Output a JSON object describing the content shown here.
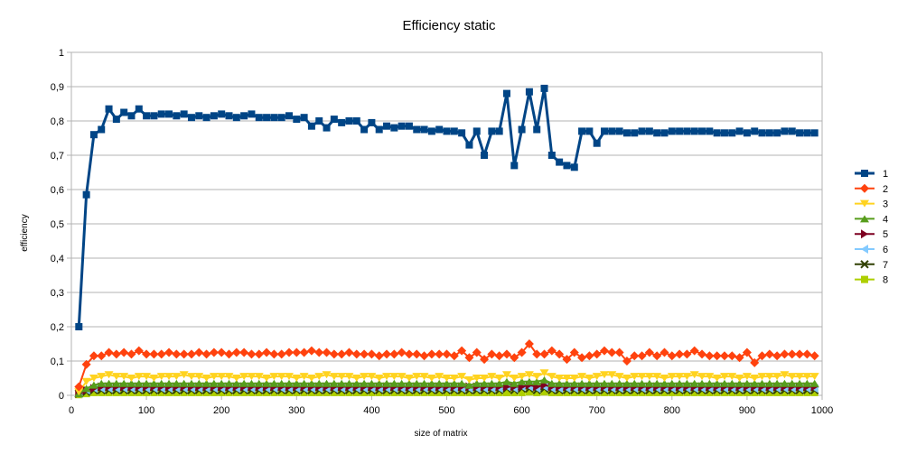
{
  "chart_data": {
    "type": "line",
    "title": "Efficiency static",
    "xlabel": "size of matrix",
    "ylabel": "efficiency",
    "xlim": [
      0,
      1000
    ],
    "ylim": [
      0,
      1
    ],
    "x_ticks": [
      0,
      100,
      200,
      300,
      400,
      500,
      600,
      700,
      800,
      900,
      1000
    ],
    "y_ticks": [
      0,
      0.1,
      0.2,
      0.3,
      0.4,
      0.5,
      0.6,
      0.7,
      0.8,
      0.9,
      1
    ],
    "y_tick_labels": [
      "0",
      "0,1",
      "0,2",
      "0,3",
      "0,4",
      "0,5",
      "0,6",
      "0,7",
      "0,8",
      "0,9",
      "1"
    ],
    "grid": "horizontal",
    "legend_position": "right",
    "x": [
      10,
      20,
      30,
      40,
      50,
      60,
      70,
      80,
      90,
      100,
      110,
      120,
      130,
      140,
      150,
      160,
      170,
      180,
      190,
      200,
      210,
      220,
      230,
      240,
      250,
      260,
      270,
      280,
      290,
      300,
      310,
      320,
      330,
      340,
      350,
      360,
      370,
      380,
      390,
      400,
      410,
      420,
      430,
      440,
      450,
      460,
      470,
      480,
      490,
      500,
      510,
      520,
      530,
      540,
      550,
      560,
      570,
      580,
      590,
      600,
      610,
      620,
      630,
      640,
      650,
      660,
      670,
      680,
      690,
      700,
      710,
      720,
      730,
      740,
      750,
      760,
      770,
      780,
      790,
      800,
      810,
      820,
      830,
      840,
      850,
      860,
      870,
      880,
      890,
      900,
      910,
      920,
      930,
      940,
      950,
      960,
      970,
      980,
      990
    ],
    "series": [
      {
        "name": "1",
        "color": "#004586",
        "marker": "square",
        "values": [
          0.2,
          0.585,
          0.76,
          0.775,
          0.835,
          0.805,
          0.825,
          0.815,
          0.835,
          0.815,
          0.815,
          0.82,
          0.82,
          0.815,
          0.82,
          0.81,
          0.815,
          0.81,
          0.815,
          0.82,
          0.815,
          0.81,
          0.815,
          0.82,
          0.81,
          0.81,
          0.81,
          0.81,
          0.815,
          0.805,
          0.81,
          0.785,
          0.8,
          0.78,
          0.805,
          0.795,
          0.8,
          0.8,
          0.775,
          0.795,
          0.775,
          0.785,
          0.78,
          0.785,
          0.785,
          0.775,
          0.775,
          0.77,
          0.775,
          0.77,
          0.77,
          0.765,
          0.73,
          0.77,
          0.7,
          0.77,
          0.77,
          0.88,
          0.67,
          0.775,
          0.885,
          0.775,
          0.895,
          0.7,
          0.68,
          0.67,
          0.665,
          0.77,
          0.77,
          0.735,
          0.77,
          0.77,
          0.77,
          0.765,
          0.765,
          0.77,
          0.77,
          0.765,
          0.765,
          0.77,
          0.77,
          0.77,
          0.77,
          0.77,
          0.77,
          0.765,
          0.765,
          0.765,
          0.77,
          0.765,
          0.77,
          0.765,
          0.765,
          0.765,
          0.77,
          0.77,
          0.765,
          0.765,
          0.765
        ]
      },
      {
        "name": "2",
        "color": "#ff420e",
        "marker": "diamond",
        "values": [
          0.025,
          0.09,
          0.115,
          0.115,
          0.125,
          0.12,
          0.125,
          0.12,
          0.13,
          0.12,
          0.12,
          0.12,
          0.125,
          0.12,
          0.12,
          0.12,
          0.125,
          0.12,
          0.125,
          0.125,
          0.12,
          0.125,
          0.125,
          0.12,
          0.12,
          0.125,
          0.12,
          0.12,
          0.125,
          0.125,
          0.125,
          0.13,
          0.125,
          0.125,
          0.12,
          0.12,
          0.125,
          0.12,
          0.12,
          0.12,
          0.115,
          0.12,
          0.12,
          0.125,
          0.12,
          0.12,
          0.115,
          0.12,
          0.12,
          0.12,
          0.115,
          0.13,
          0.11,
          0.125,
          0.105,
          0.12,
          0.115,
          0.12,
          0.11,
          0.125,
          0.15,
          0.12,
          0.12,
          0.13,
          0.12,
          0.105,
          0.125,
          0.11,
          0.115,
          0.12,
          0.13,
          0.125,
          0.125,
          0.1,
          0.115,
          0.115,
          0.125,
          0.115,
          0.125,
          0.115,
          0.12,
          0.12,
          0.13,
          0.12,
          0.115,
          0.115,
          0.115,
          0.115,
          0.11,
          0.125,
          0.095,
          0.115,
          0.12,
          0.115,
          0.12,
          0.12,
          0.12,
          0.12,
          0.115
        ]
      },
      {
        "name": "3",
        "color": "#ffd320",
        "marker": "triangle-down",
        "values": [
          0.01,
          0.04,
          0.05,
          0.055,
          0.06,
          0.055,
          0.055,
          0.05,
          0.055,
          0.055,
          0.05,
          0.055,
          0.055,
          0.055,
          0.06,
          0.055,
          0.055,
          0.05,
          0.055,
          0.055,
          0.055,
          0.05,
          0.055,
          0.055,
          0.055,
          0.05,
          0.055,
          0.055,
          0.055,
          0.05,
          0.055,
          0.05,
          0.055,
          0.06,
          0.055,
          0.055,
          0.055,
          0.05,
          0.055,
          0.055,
          0.05,
          0.055,
          0.055,
          0.055,
          0.05,
          0.055,
          0.055,
          0.05,
          0.055,
          0.05,
          0.05,
          0.055,
          0.045,
          0.05,
          0.05,
          0.055,
          0.05,
          0.06,
          0.05,
          0.055,
          0.06,
          0.055,
          0.065,
          0.055,
          0.05,
          0.05,
          0.05,
          0.055,
          0.05,
          0.055,
          0.06,
          0.06,
          0.055,
          0.05,
          0.055,
          0.055,
          0.055,
          0.055,
          0.05,
          0.055,
          0.055,
          0.055,
          0.06,
          0.055,
          0.055,
          0.05,
          0.055,
          0.055,
          0.05,
          0.055,
          0.05,
          0.055,
          0.055,
          0.055,
          0.06,
          0.055,
          0.055,
          0.055,
          0.055
        ]
      },
      {
        "name": "4",
        "color": "#579d1c",
        "marker": "triangle-up",
        "values": [
          0.005,
          0.02,
          0.03,
          0.035,
          0.035,
          0.035,
          0.035,
          0.035,
          0.035,
          0.035,
          0.035,
          0.035,
          0.035,
          0.035,
          0.035,
          0.035,
          0.035,
          0.035,
          0.035,
          0.035,
          0.035,
          0.035,
          0.035,
          0.035,
          0.035,
          0.035,
          0.035,
          0.035,
          0.035,
          0.035,
          0.035,
          0.035,
          0.035,
          0.035,
          0.035,
          0.035,
          0.035,
          0.035,
          0.035,
          0.035,
          0.035,
          0.035,
          0.035,
          0.035,
          0.035,
          0.035,
          0.035,
          0.035,
          0.035,
          0.035,
          0.035,
          0.035,
          0.03,
          0.035,
          0.035,
          0.035,
          0.035,
          0.04,
          0.035,
          0.04,
          0.04,
          0.04,
          0.045,
          0.035,
          0.035,
          0.035,
          0.035,
          0.035,
          0.035,
          0.035,
          0.035,
          0.035,
          0.035,
          0.035,
          0.035,
          0.035,
          0.035,
          0.035,
          0.035,
          0.035,
          0.035,
          0.035,
          0.035,
          0.035,
          0.035,
          0.035,
          0.035,
          0.035,
          0.035,
          0.035,
          0.035,
          0.035,
          0.035,
          0.035,
          0.035,
          0.035,
          0.035,
          0.035,
          0.035
        ]
      },
      {
        "name": "5",
        "color": "#7e0021",
        "marker": "triangle-right",
        "values": [
          0.005,
          0.015,
          0.02,
          0.025,
          0.025,
          0.025,
          0.025,
          0.025,
          0.025,
          0.025,
          0.025,
          0.025,
          0.025,
          0.025,
          0.025,
          0.025,
          0.025,
          0.025,
          0.025,
          0.025,
          0.025,
          0.025,
          0.025,
          0.025,
          0.025,
          0.025,
          0.025,
          0.025,
          0.025,
          0.025,
          0.025,
          0.025,
          0.025,
          0.025,
          0.025,
          0.025,
          0.025,
          0.025,
          0.025,
          0.025,
          0.025,
          0.025,
          0.025,
          0.025,
          0.025,
          0.025,
          0.025,
          0.025,
          0.025,
          0.025,
          0.025,
          0.025,
          0.025,
          0.025,
          0.025,
          0.025,
          0.025,
          0.025,
          0.025,
          0.025,
          0.03,
          0.025,
          0.03,
          0.025,
          0.025,
          0.025,
          0.025,
          0.025,
          0.025,
          0.025,
          0.025,
          0.025,
          0.025,
          0.025,
          0.025,
          0.025,
          0.025,
          0.025,
          0.025,
          0.025,
          0.025,
          0.025,
          0.025,
          0.025,
          0.025,
          0.025,
          0.025,
          0.025,
          0.025,
          0.025,
          0.025,
          0.025,
          0.025,
          0.025,
          0.025,
          0.025,
          0.025,
          0.025,
          0.025
        ]
      },
      {
        "name": "6",
        "color": "#83caff",
        "marker": "triangle-left",
        "values": [
          0.005,
          0.015,
          0.02,
          0.02,
          0.02,
          0.02,
          0.02,
          0.02,
          0.02,
          0.02,
          0.02,
          0.02,
          0.02,
          0.02,
          0.02,
          0.02,
          0.02,
          0.02,
          0.02,
          0.02,
          0.02,
          0.02,
          0.02,
          0.02,
          0.02,
          0.02,
          0.02,
          0.02,
          0.02,
          0.02,
          0.02,
          0.02,
          0.02,
          0.02,
          0.02,
          0.02,
          0.02,
          0.02,
          0.02,
          0.02,
          0.02,
          0.02,
          0.02,
          0.02,
          0.02,
          0.02,
          0.02,
          0.02,
          0.02,
          0.02,
          0.02,
          0.02,
          0.02,
          0.02,
          0.02,
          0.02,
          0.02,
          0.025,
          0.02,
          0.025,
          0.025,
          0.02,
          0.025,
          0.02,
          0.02,
          0.02,
          0.02,
          0.02,
          0.02,
          0.02,
          0.02,
          0.02,
          0.02,
          0.02,
          0.02,
          0.02,
          0.02,
          0.02,
          0.02,
          0.02,
          0.02,
          0.02,
          0.02,
          0.02,
          0.02,
          0.02,
          0.02,
          0.02,
          0.02,
          0.02,
          0.02,
          0.02,
          0.02,
          0.02,
          0.02,
          0.02,
          0.02,
          0.02,
          0.02
        ]
      },
      {
        "name": "7",
        "color": "#314004",
        "marker": "x",
        "values": [
          0.005,
          0.01,
          0.015,
          0.015,
          0.015,
          0.015,
          0.015,
          0.015,
          0.015,
          0.015,
          0.015,
          0.015,
          0.015,
          0.015,
          0.015,
          0.015,
          0.015,
          0.015,
          0.015,
          0.015,
          0.015,
          0.015,
          0.015,
          0.015,
          0.015,
          0.015,
          0.015,
          0.015,
          0.015,
          0.015,
          0.015,
          0.015,
          0.015,
          0.015,
          0.015,
          0.015,
          0.015,
          0.015,
          0.015,
          0.015,
          0.015,
          0.015,
          0.015,
          0.015,
          0.015,
          0.015,
          0.015,
          0.015,
          0.015,
          0.015,
          0.015,
          0.015,
          0.015,
          0.015,
          0.015,
          0.015,
          0.015,
          0.02,
          0.015,
          0.02,
          0.02,
          0.015,
          0.02,
          0.015,
          0.015,
          0.015,
          0.015,
          0.015,
          0.015,
          0.015,
          0.015,
          0.015,
          0.015,
          0.015,
          0.015,
          0.015,
          0.015,
          0.015,
          0.015,
          0.015,
          0.015,
          0.015,
          0.015,
          0.015,
          0.015,
          0.015,
          0.015,
          0.015,
          0.015,
          0.015,
          0.015,
          0.015,
          0.015,
          0.015,
          0.015,
          0.015,
          0.015,
          0.015,
          0.015
        ]
      },
      {
        "name": "8",
        "color": "#aecf00",
        "marker": "square",
        "values": [
          0.002,
          0.005,
          0.008,
          0.008,
          0.008,
          0.008,
          0.008,
          0.008,
          0.008,
          0.008,
          0.008,
          0.008,
          0.008,
          0.008,
          0.008,
          0.008,
          0.008,
          0.008,
          0.008,
          0.008,
          0.008,
          0.008,
          0.008,
          0.008,
          0.008,
          0.008,
          0.008,
          0.008,
          0.008,
          0.008,
          0.008,
          0.008,
          0.008,
          0.008,
          0.008,
          0.008,
          0.008,
          0.008,
          0.008,
          0.008,
          0.008,
          0.008,
          0.008,
          0.008,
          0.008,
          0.008,
          0.008,
          0.008,
          0.008,
          0.008,
          0.008,
          0.008,
          0.008,
          0.008,
          0.008,
          0.008,
          0.008,
          0.008,
          0.008,
          0.008,
          0.01,
          0.008,
          0.01,
          0.008,
          0.008,
          0.008,
          0.008,
          0.008,
          0.008,
          0.008,
          0.008,
          0.008,
          0.008,
          0.008,
          0.008,
          0.008,
          0.008,
          0.008,
          0.008,
          0.008,
          0.008,
          0.008,
          0.008,
          0.008,
          0.008,
          0.008,
          0.008,
          0.008,
          0.008,
          0.008,
          0.008,
          0.008,
          0.008,
          0.008,
          0.008,
          0.008,
          0.008,
          0.008,
          0.008
        ]
      }
    ]
  }
}
